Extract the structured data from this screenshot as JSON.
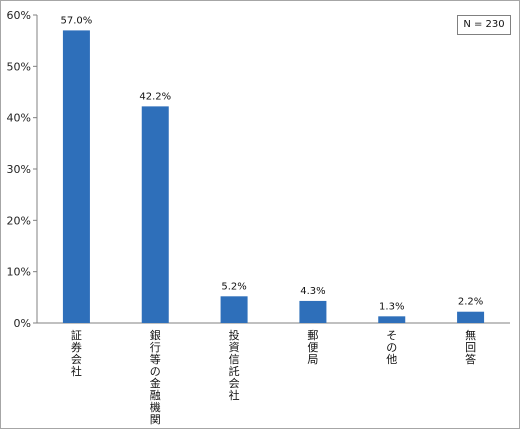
{
  "chart_data": {
    "type": "bar",
    "categories": [
      "証券会社",
      "銀行等の金融機関",
      "投資信託会社",
      "郵便局",
      "その他",
      "無回答"
    ],
    "values": [
      57.0,
      42.2,
      5.2,
      4.3,
      1.3,
      2.2
    ],
    "value_labels": [
      "57.0%",
      "42.2%",
      "5.2%",
      "4.3%",
      "1.3%",
      "2.2%"
    ],
    "y_ticks": [
      "0%",
      "10%",
      "20%",
      "30%",
      "40%",
      "50%",
      "60%"
    ],
    "ylim": [
      0,
      60
    ],
    "bar_color": "#2e6fba",
    "grid": false,
    "annotation": "N = 230",
    "annotation_position": "top-right"
  }
}
